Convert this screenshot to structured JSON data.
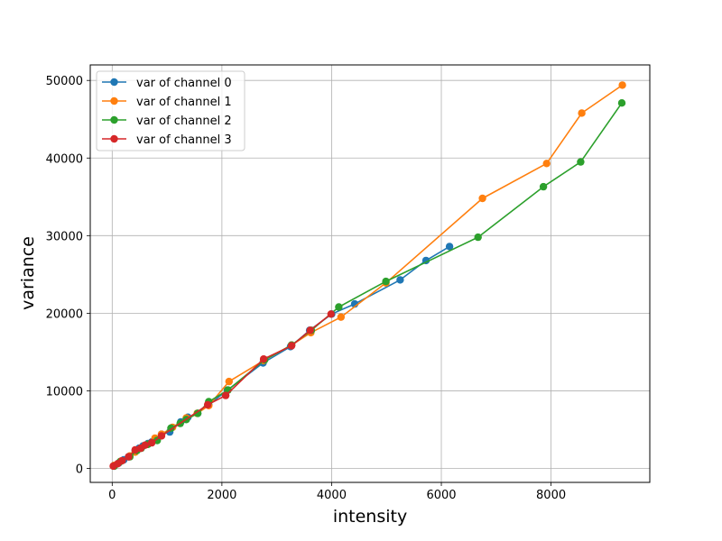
{
  "chart_data": {
    "type": "line",
    "xlabel": "intensity",
    "ylabel": "variance",
    "xlim": [
      -400,
      9800
    ],
    "ylim": [
      -1800,
      52000
    ],
    "xticks": [
      0,
      2000,
      4000,
      6000,
      8000
    ],
    "yticks": [
      0,
      10000,
      20000,
      30000,
      40000,
      50000
    ],
    "xtick_labels": [
      "0",
      "2000",
      "4000",
      "6000",
      "8000"
    ],
    "ytick_labels": [
      "0",
      "10000",
      "20000",
      "30000",
      "40000",
      "50000"
    ],
    "grid": true,
    "legend_position": "top-left",
    "series": [
      {
        "name": "var of channel 0",
        "color": "#1f77b4",
        "x": [
          30,
          120,
          210,
          300,
          420,
          490,
          560,
          650,
          720,
          800,
          900,
          1050,
          1250,
          1380,
          1560,
          1760,
          2100,
          2750,
          3250,
          3600,
          4000,
          4420,
          5250,
          5720,
          6150
        ],
        "y": [
          300,
          700,
          1100,
          1500,
          2300,
          2600,
          2900,
          3200,
          3400,
          3800,
          4400,
          4700,
          6000,
          6600,
          7100,
          8200,
          10100,
          13600,
          15700,
          17800,
          19900,
          21200,
          24300,
          26800,
          28600
        ]
      },
      {
        "name": "var of channel 1",
        "color": "#ff7f0e",
        "x": [
          40,
          150,
          320,
          420,
          520,
          650,
          780,
          900,
          1100,
          1350,
          1550,
          1760,
          2130,
          2760,
          3270,
          3620,
          4170,
          4990,
          6750,
          7920,
          8560,
          9300
        ],
        "y": [
          400,
          900,
          1600,
          2100,
          2600,
          3100,
          3900,
          4400,
          5300,
          6500,
          7100,
          8100,
          11200,
          13900,
          15900,
          17500,
          19500,
          23900,
          34800,
          39300,
          45800,
          49400
        ],
        "marker_only": false
      },
      {
        "name": "var of channel 2",
        "color": "#2ca02c",
        "x": [
          40,
          150,
          320,
          450,
          530,
          650,
          820,
          1070,
          1240,
          1350,
          1560,
          1760,
          2110,
          2780,
          3270,
          3630,
          4130,
          4990,
          6670,
          7860,
          8540,
          9290
        ],
        "y": [
          300,
          900,
          1500,
          2300,
          2600,
          3100,
          3600,
          5200,
          5800,
          6300,
          7100,
          8600,
          10100,
          14000,
          15900,
          17800,
          20800,
          24100,
          29800,
          36300,
          39500,
          47100
        ]
      },
      {
        "name": "var of channel 3",
        "color": "#d62728",
        "x": [
          20,
          100,
          180,
          300,
          420,
          520,
          600,
          720,
          900,
          1740,
          2070,
          2760,
          3270,
          3610,
          3990
        ],
        "y": [
          300,
          600,
          1000,
          1500,
          2400,
          2600,
          3000,
          3300,
          4200,
          8200,
          9400,
          14100,
          15800,
          17800,
          19900
        ]
      }
    ]
  }
}
